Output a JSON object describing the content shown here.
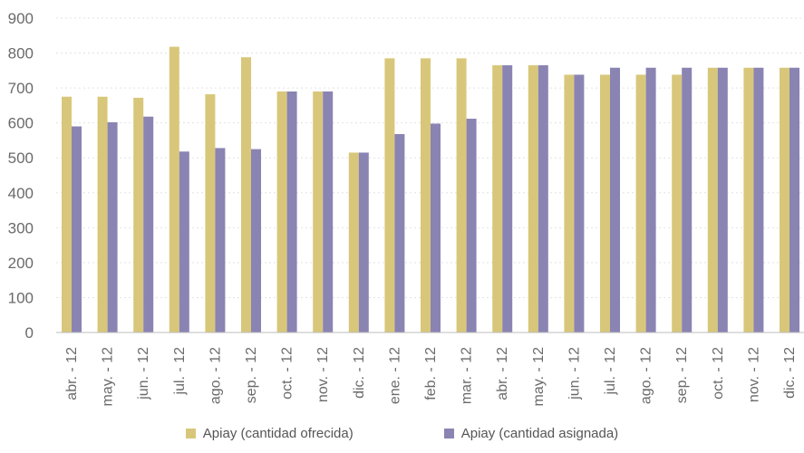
{
  "chart_data": {
    "type": "bar",
    "categories": [
      "abr. - 12",
      "may. - 12",
      "jun. - 12",
      "jul. - 12",
      "ago. - 12",
      "sep. - 12",
      "oct. - 12",
      "nov. - 12",
      "dic. - 12",
      "ene. - 12",
      "feb. - 12",
      "mar. - 12",
      "abr. - 12",
      "may. - 12",
      "jun. - 12",
      "jul. - 12",
      "ago. - 12",
      "sep. - 12",
      "oct. - 12",
      "nov. - 12",
      "dic. - 12"
    ],
    "series": [
      {
        "name": "Apiay (cantidad ofrecida)",
        "color": "#d8c77a",
        "values": [
          675,
          675,
          672,
          818,
          682,
          788,
          690,
          690,
          515,
          785,
          785,
          785,
          765,
          765,
          738,
          738,
          738,
          738,
          758,
          758,
          758
        ]
      },
      {
        "name": "Apiay (cantidad asignada)",
        "color": "#8a84b3",
        "values": [
          590,
          602,
          618,
          518,
          528,
          525,
          690,
          690,
          515,
          568,
          598,
          612,
          765,
          765,
          738,
          758,
          758,
          758,
          758,
          758,
          758
        ]
      }
    ],
    "y_ticks": [
      "0",
      "100",
      "200",
      "300",
      "400",
      "500",
      "600",
      "700",
      "800",
      "900"
    ],
    "ylim": [
      0,
      900
    ],
    "grid": true,
    "legend_position": "bottom"
  }
}
